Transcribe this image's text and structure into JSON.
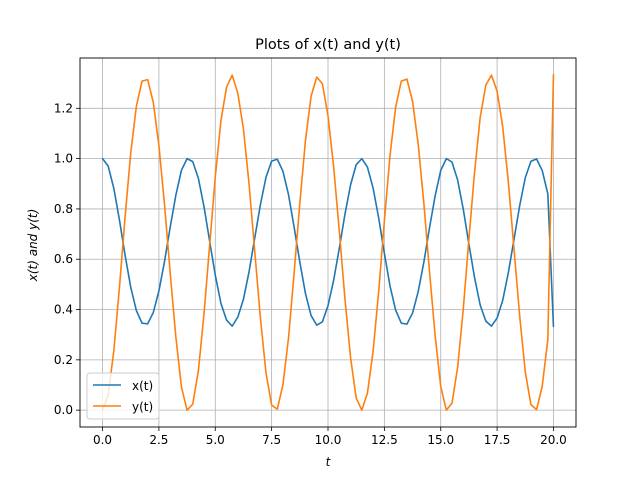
{
  "chart_data": {
    "type": "line",
    "title": "Plots of x(t) and y(t)",
    "xlabel": "t",
    "ylabel": "x(t) and y(t)",
    "xlim": [
      -1.0,
      21.0
    ],
    "ylim": [
      -0.067,
      1.4
    ],
    "xticks": [
      "0.0",
      "2.5",
      "5.0",
      "7.5",
      "10.0",
      "12.5",
      "15.0",
      "17.5",
      "20.0"
    ],
    "yticks": [
      "0.0",
      "0.2",
      "0.4",
      "0.6",
      "0.8",
      "1.0",
      "1.2"
    ],
    "grid": true,
    "legend_position": "lower-left",
    "series": [
      {
        "name": "x(t)",
        "color": "#1f77b4",
        "x": [
          0.0,
          0.25,
          0.5,
          0.75,
          1.0,
          1.25,
          1.5,
          1.75,
          2.0,
          2.25,
          2.5,
          2.75,
          3.0,
          3.25,
          3.5,
          3.75,
          4.0,
          4.25,
          4.5,
          4.75,
          5.0,
          5.25,
          5.5,
          5.75,
          6.0,
          6.25,
          6.5,
          6.75,
          7.0,
          7.25,
          7.5,
          7.75,
          8.0,
          8.25,
          8.5,
          8.75,
          9.0,
          9.25,
          9.5,
          9.75,
          10.0,
          10.25,
          10.5,
          10.75,
          11.0,
          11.25,
          11.5,
          11.75,
          12.0,
          12.25,
          12.5,
          12.75,
          13.0,
          13.25,
          13.5,
          13.75,
          14.0,
          14.25,
          14.5,
          14.75,
          15.0,
          15.25,
          15.5,
          15.75,
          16.0,
          16.25,
          16.5,
          16.75,
          17.0,
          17.25,
          17.5,
          17.75,
          18.0,
          18.25,
          18.5,
          18.75,
          19.0,
          19.25,
          19.5,
          19.75,
          20.0
        ],
        "values": [
          1.0,
          0.97,
          0.882,
          0.756,
          0.616,
          0.489,
          0.396,
          0.346,
          0.343,
          0.388,
          0.474,
          0.592,
          0.727,
          0.854,
          0.954,
          1.0,
          0.988,
          0.922,
          0.809,
          0.672,
          0.537,
          0.425,
          0.358,
          0.334,
          0.37,
          0.441,
          0.551,
          0.684,
          0.816,
          0.926,
          0.99,
          0.998,
          0.95,
          0.856,
          0.726,
          0.589,
          0.464,
          0.376,
          0.338,
          0.351,
          0.415,
          0.516,
          0.643,
          0.778,
          0.895,
          0.976,
          1.0,
          0.966,
          0.883,
          0.763,
          0.624,
          0.494,
          0.398,
          0.346,
          0.342,
          0.386,
          0.471,
          0.588,
          0.723,
          0.851,
          0.953,
          1.0,
          0.986,
          0.915,
          0.799,
          0.66,
          0.527,
          0.418,
          0.354,
          0.334,
          0.366,
          0.437,
          0.547,
          0.679,
          0.812,
          0.924,
          0.989,
          0.999,
          0.953,
          0.86,
          0.333
        ]
      },
      {
        "name": "y(t)",
        "color": "#ff7f0e",
        "x": [
          0.0,
          0.25,
          0.5,
          0.75,
          1.0,
          1.25,
          1.5,
          1.75,
          2.0,
          2.25,
          2.5,
          2.75,
          3.0,
          3.25,
          3.5,
          3.75,
          4.0,
          4.25,
          4.5,
          4.75,
          5.0,
          5.25,
          5.5,
          5.75,
          6.0,
          6.25,
          6.5,
          6.75,
          7.0,
          7.25,
          7.5,
          7.75,
          8.0,
          8.25,
          8.5,
          8.75,
          9.0,
          9.25,
          9.5,
          9.75,
          10.0,
          10.25,
          10.5,
          10.75,
          11.0,
          11.25,
          11.5,
          11.75,
          12.0,
          12.25,
          12.5,
          12.75,
          13.0,
          13.25,
          13.5,
          13.75,
          14.0,
          14.25,
          14.5,
          14.75,
          15.0,
          15.25,
          15.5,
          15.75,
          16.0,
          16.25,
          16.5,
          16.75,
          17.0,
          17.25,
          17.5,
          17.75,
          18.0,
          18.25,
          18.5,
          18.75,
          19.0,
          19.25,
          19.5,
          19.75,
          20.0
        ],
        "values": [
          0.0,
          0.06,
          0.236,
          0.488,
          0.768,
          1.022,
          1.208,
          1.308,
          1.314,
          1.224,
          1.052,
          0.816,
          0.546,
          0.292,
          0.092,
          0.0,
          0.024,
          0.156,
          0.382,
          0.656,
          0.926,
          1.15,
          1.284,
          1.332,
          1.26,
          1.118,
          0.898,
          0.632,
          0.368,
          0.148,
          0.02,
          0.004,
          0.1,
          0.288,
          0.548,
          0.822,
          1.072,
          1.248,
          1.324,
          1.298,
          1.17,
          0.968,
          0.714,
          0.444,
          0.21,
          0.048,
          0.0,
          0.068,
          0.234,
          0.474,
          0.752,
          1.012,
          1.204,
          1.308,
          1.316,
          1.228,
          1.058,
          0.824,
          0.554,
          0.298,
          0.094,
          0.0,
          0.028,
          0.17,
          0.402,
          0.68,
          0.946,
          1.164,
          1.292,
          1.332,
          1.268,
          1.126,
          0.906,
          0.642,
          0.376,
          0.152,
          0.022,
          0.002,
          0.094,
          0.28,
          1.333
        ]
      }
    ]
  }
}
